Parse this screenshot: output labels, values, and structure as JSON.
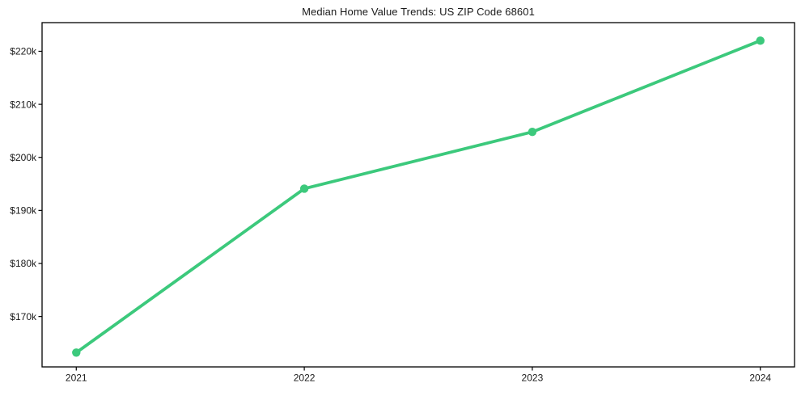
{
  "chart_data": {
    "type": "line",
    "title": "Median Home Value Trends: US ZIP Code 68601",
    "x": [
      2021,
      2022,
      2023,
      2024
    ],
    "x_tick_labels": [
      "2021",
      "2022",
      "2023",
      "2024"
    ],
    "series": [
      {
        "name": "Median Home Value",
        "values": [
          163200,
          194100,
          204800,
          222000
        ],
        "color": "#3cc97c",
        "marker": "circle"
      }
    ],
    "y_ticks": [
      170000,
      180000,
      190000,
      200000,
      210000,
      220000
    ],
    "y_tick_labels": [
      "$170k",
      "$180k",
      "$190k",
      "$200k",
      "$210k",
      "$220k"
    ],
    "xlim": [
      2020.85,
      2024.15
    ],
    "ylim": [
      160500,
      225400
    ],
    "grid": false,
    "legend": "none",
    "background_color": "#ffffff",
    "axis_color": "#000000",
    "text_color": "#1a1a1a"
  }
}
